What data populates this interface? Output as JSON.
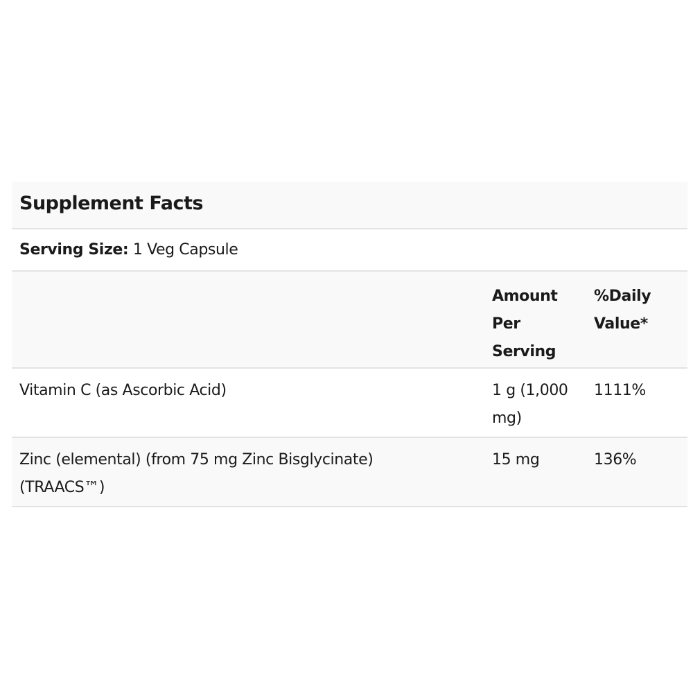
{
  "title": "Supplement Facts",
  "serving": {
    "label": "Serving Size:",
    "value": "1 Veg Capsule"
  },
  "columns": {
    "amount": "Amount Per Serving",
    "daily_value": "%Daily Value*"
  },
  "rows": [
    {
      "name": "Vitamin C (as Ascorbic Acid)",
      "amount": "1 g (1,000 mg)",
      "daily_value": "1111%"
    },
    {
      "name": "Zinc (elemental) (from 75 mg Zinc Bisglycinate) (TRAACS™)",
      "amount": "15 mg",
      "daily_value": "136%"
    }
  ]
}
